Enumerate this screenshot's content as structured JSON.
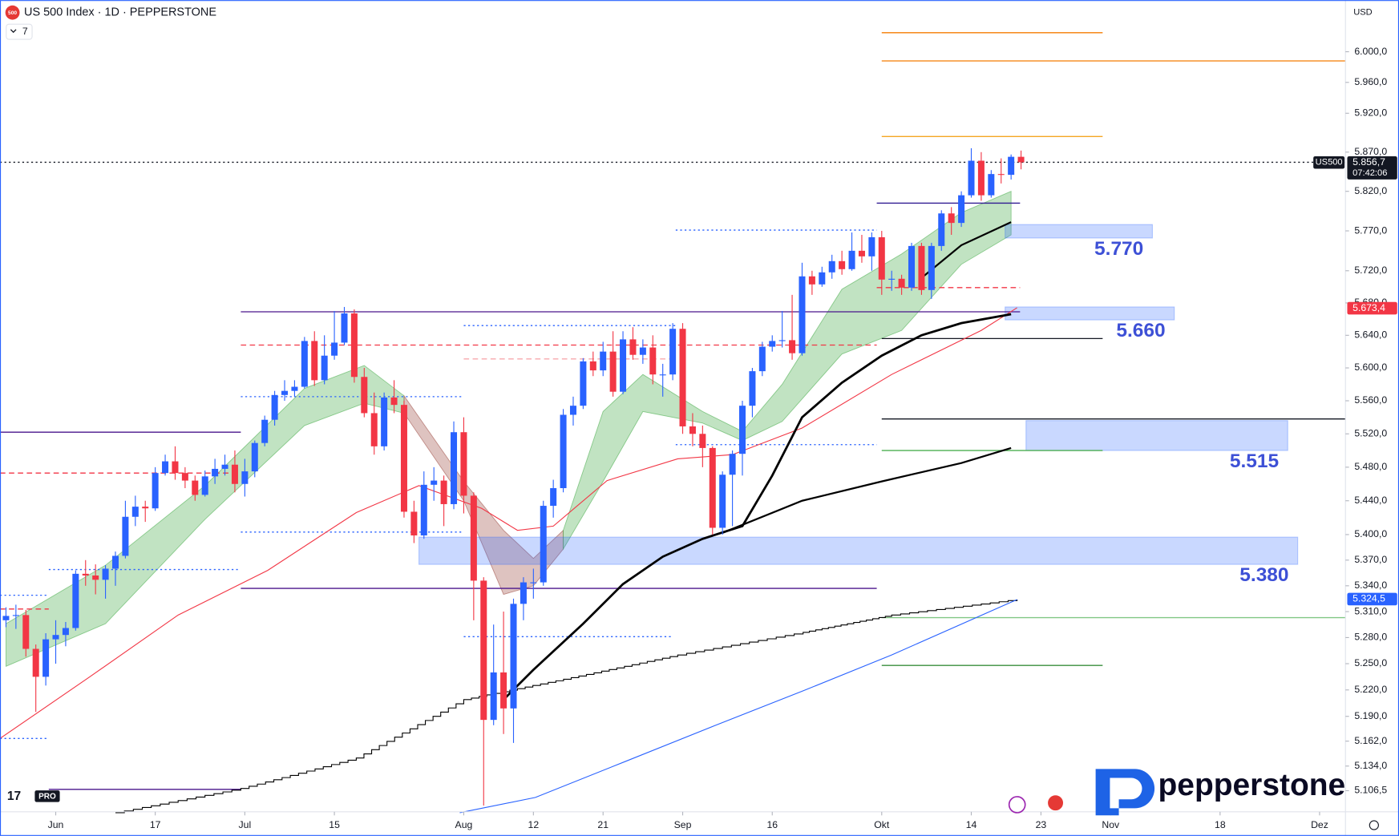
{
  "chart_data": {
    "type": "candlestick",
    "title": "US 500 Index · 1D · PEPPERSTONE",
    "symbol_icon": "500",
    "indicator_count": "7",
    "currency": "USD",
    "symbol": "US500",
    "countdown": "07:42:06",
    "logo": "pepperstone",
    "tv_badge": "PRO",
    "log_scale": true,
    "grid": false,
    "up_color": "#2962ff",
    "down_color": "#f23645",
    "xlim": [
      -0.6,
      134.6
    ],
    "ylim": [
      5083,
      6068
    ],
    "xticks": [
      {
        "value": 5,
        "label": "Jun"
      },
      {
        "value": 15,
        "label": "17"
      },
      {
        "value": 24,
        "label": "Jul"
      },
      {
        "value": 33,
        "label": "15"
      },
      {
        "value": 46,
        "label": "Aug"
      },
      {
        "value": 53,
        "label": "12"
      },
      {
        "value": 60,
        "label": "21"
      },
      {
        "value": 68,
        "label": "Sep"
      },
      {
        "value": 77,
        "label": "16"
      },
      {
        "value": 88,
        "label": "Okt"
      },
      {
        "value": 97,
        "label": "14"
      },
      {
        "value": 104,
        "label": "23"
      },
      {
        "value": 111,
        "label": "Nov"
      },
      {
        "value": 122,
        "label": "18"
      },
      {
        "value": 132,
        "label": "Dez"
      }
    ],
    "yticks": [
      {
        "value": 6000,
        "label": "6.000,0"
      },
      {
        "value": 5960,
        "label": "5.960,0"
      },
      {
        "value": 5920,
        "label": "5.920,0"
      },
      {
        "value": 5870,
        "label": "5.870,0"
      },
      {
        "value": 5820,
        "label": "5.820,0"
      },
      {
        "value": 5770,
        "label": "5.770,0"
      },
      {
        "value": 5720,
        "label": "5.720,0"
      },
      {
        "value": 5680,
        "label": "5.680,0"
      },
      {
        "value": 5640,
        "label": "5.640,0"
      },
      {
        "value": 5600,
        "label": "5.600,0"
      },
      {
        "value": 5560,
        "label": "5.560,0"
      },
      {
        "value": 5520,
        "label": "5.520,0"
      },
      {
        "value": 5480,
        "label": "5.480,0"
      },
      {
        "value": 5440,
        "label": "5.440,0"
      },
      {
        "value": 5400,
        "label": "5.400,0"
      },
      {
        "value": 5370,
        "label": "5.370,0"
      },
      {
        "value": 5340,
        "label": "5.340,0"
      },
      {
        "value": 5310,
        "label": "5.310,0"
      },
      {
        "value": 5280,
        "label": "5.280,0"
      },
      {
        "value": 5250,
        "label": "5.250,0"
      },
      {
        "value": 5220,
        "label": "5.220,0"
      },
      {
        "value": 5190,
        "label": "5.190,0"
      },
      {
        "value": 5162,
        "label": "5.162,0"
      },
      {
        "value": 5134,
        "label": "5.134,0"
      },
      {
        "value": 5106.5,
        "label": "5.106,5"
      }
    ],
    "series": [
      {
        "name": "US500",
        "open": [
          5300,
          5305,
          5306,
          5267,
          5235,
          5278,
          5283,
          5291,
          5354,
          5352,
          5347,
          5360,
          5375,
          5421,
          5433,
          5431,
          5473,
          5487,
          5473,
          5464,
          5447,
          5469,
          5478,
          5483,
          5460,
          5475,
          5509,
          5537,
          5567,
          5572,
          5577,
          5633,
          5585,
          5615,
          5631,
          5667,
          5589,
          5545,
          5505,
          5564,
          5555,
          5427,
          5399,
          5459,
          5464,
          5436,
          5522,
          5446,
          5346,
          5186,
          5240,
          5199,
          5319,
          5344,
          5344,
          5434,
          5455,
          5543,
          5554,
          5608,
          5597,
          5620,
          5571,
          5635,
          5616,
          5625,
          5592,
          5592,
          5648,
          5529,
          5520,
          5503,
          5408,
          5471,
          5496,
          5554,
          5596,
          5626,
          5633,
          5634,
          5618,
          5713,
          5703,
          5718,
          5732,
          5722,
          5745,
          5738,
          5762,
          5709,
          5710,
          5699,
          5751,
          5696,
          5751,
          5792,
          5780,
          5815,
          5859,
          5815,
          5842,
          5841,
          5864
        ],
        "high": [
          5315,
          5318,
          5312,
          5272,
          5285,
          5300,
          5298,
          5358,
          5370,
          5365,
          5364,
          5380,
          5440,
          5446,
          5440,
          5480,
          5495,
          5505,
          5480,
          5470,
          5476,
          5490,
          5495,
          5500,
          5490,
          5512,
          5542,
          5572,
          5585,
          5585,
          5638,
          5645,
          5640,
          5670,
          5675,
          5672,
          5600,
          5570,
          5570,
          5585,
          5560,
          5440,
          5475,
          5480,
          5470,
          5535,
          5540,
          5450,
          5350,
          5295,
          5310,
          5325,
          5350,
          5360,
          5440,
          5465,
          5550,
          5565,
          5612,
          5620,
          5632,
          5645,
          5645,
          5650,
          5635,
          5640,
          5605,
          5655,
          5655,
          5545,
          5530,
          5505,
          5475,
          5500,
          5560,
          5600,
          5632,
          5640,
          5670,
          5690,
          5730,
          5720,
          5725,
          5740,
          5745,
          5768,
          5765,
          5768,
          5770,
          5720,
          5715,
          5755,
          5755,
          5755,
          5796,
          5800,
          5820,
          5875,
          5870,
          5847,
          5862,
          5867,
          5872
        ],
        "low": [
          5292,
          5290,
          5258,
          5195,
          5225,
          5250,
          5270,
          5288,
          5340,
          5330,
          5325,
          5340,
          5372,
          5410,
          5415,
          5428,
          5470,
          5465,
          5455,
          5440,
          5445,
          5460,
          5470,
          5450,
          5445,
          5468,
          5505,
          5530,
          5560,
          5565,
          5575,
          5578,
          5580,
          5610,
          5628,
          5582,
          5540,
          5495,
          5500,
          5545,
          5420,
          5390,
          5395,
          5440,
          5410,
          5430,
          5425,
          5300,
          5090,
          5180,
          5170,
          5160,
          5300,
          5325,
          5340,
          5420,
          5450,
          5530,
          5550,
          5590,
          5590,
          5565,
          5568,
          5610,
          5605,
          5580,
          5565,
          5585,
          5520,
          5505,
          5480,
          5400,
          5400,
          5410,
          5470,
          5540,
          5590,
          5620,
          5625,
          5610,
          5615,
          5690,
          5700,
          5710,
          5715,
          5720,
          5730,
          5720,
          5690,
          5695,
          5690,
          5695,
          5690,
          5685,
          5745,
          5765,
          5775,
          5812,
          5808,
          5812,
          5830,
          5835,
          5848
        ],
        "close": [
          5305,
          5306,
          5267,
          5235,
          5278,
          5283,
          5291,
          5354,
          5352,
          5347,
          5360,
          5375,
          5421,
          5433,
          5431,
          5473,
          5487,
          5473,
          5464,
          5447,
          5469,
          5478,
          5483,
          5460,
          5475,
          5509,
          5537,
          5567,
          5572,
          5577,
          5633,
          5585,
          5615,
          5631,
          5667,
          5589,
          5545,
          5505,
          5564,
          5555,
          5427,
          5399,
          5459,
          5464,
          5436,
          5522,
          5446,
          5346,
          5186,
          5240,
          5199,
          5319,
          5344,
          5344,
          5434,
          5455,
          5543,
          5554,
          5608,
          5597,
          5620,
          5571,
          5635,
          5616,
          5625,
          5592,
          5592,
          5648,
          5529,
          5520,
          5503,
          5408,
          5471,
          5496,
          5554,
          5596,
          5626,
          5633,
          5634,
          5618,
          5713,
          5703,
          5718,
          5732,
          5722,
          5745,
          5738,
          5762,
          5709,
          5710,
          5699,
          5751,
          5696,
          5751,
          5792,
          5780,
          5815,
          5859,
          5815,
          5842,
          5841,
          5864,
          5857
        ]
      }
    ],
    "bands": [
      {
        "color": "#4caf50",
        "x": [
          0,
          10,
          20,
          30,
          36,
          40
        ],
        "upper": [
          5296,
          5364,
          5458,
          5575,
          5603,
          5566
        ],
        "lower": [
          5247,
          5296,
          5418,
          5530,
          5557,
          5545
        ]
      },
      {
        "color": "#a0524a",
        "x": [
          40,
          46,
          50,
          53,
          56
        ],
        "upper": [
          5566,
          5463,
          5405,
          5372,
          5405
        ],
        "lower": [
          5545,
          5440,
          5330,
          5340,
          5383
        ]
      },
      {
        "color": "#4caf50",
        "x": [
          56,
          60,
          64,
          70,
          74,
          78,
          84,
          90,
          96,
          101
        ],
        "upper": [
          5405,
          5547,
          5592,
          5547,
          5523,
          5580,
          5697,
          5741,
          5793,
          5820
        ],
        "lower": [
          5383,
          5463,
          5547,
          5533,
          5512,
          5535,
          5617,
          5646,
          5728,
          5765
        ]
      }
    ],
    "lines": [
      {
        "color": "#000000",
        "width": 1,
        "step": true,
        "x": [
          11,
          23.6,
          35.2,
          46,
          56.8,
          67.5,
          80.1,
          89,
          101.6
        ],
        "values": [
          5082,
          5109,
          5143,
          5209,
          5234,
          5260,
          5286,
          5306,
          5324
        ]
      },
      {
        "color": "#2962ff",
        "width": 1,
        "x": [
          45.6,
          53.2,
          62.2,
          71.1,
          80.1,
          89,
          101.6
        ],
        "values": [
          5082,
          5099,
          5139,
          5179,
          5219,
          5260,
          5324
        ]
      },
      {
        "color": "#f23645",
        "width": 1,
        "x": [
          -0.6,
          8.3,
          17.3,
          26.3,
          35.2,
          41.5,
          47.8,
          51.4,
          55,
          60.4,
          67.5,
          73,
          80,
          89,
          98,
          101.6
        ],
        "values": [
          5165,
          5234,
          5306,
          5358,
          5426,
          5458,
          5431,
          5405,
          5410,
          5464,
          5490,
          5495,
          5527,
          5592,
          5646,
          5674
        ]
      },
      {
        "color": "#000000",
        "width": 2.5,
        "x": [
          50,
          53,
          58,
          62,
          66,
          70,
          74,
          77,
          80,
          84,
          88,
          92,
          96,
          101
        ],
        "values": [
          5209,
          5243,
          5296,
          5342,
          5374,
          5395,
          5410,
          5470,
          5540,
          5582,
          5615,
          5640,
          5655,
          5666
        ]
      },
      {
        "color": "#000000",
        "width": 2,
        "x": [
          72,
          80,
          88,
          96,
          101
        ],
        "values": [
          5402,
          5440,
          5463,
          5485,
          5503
        ]
      },
      {
        "color": "#000000",
        "width": 2,
        "x": [
          92,
          96,
          101
        ],
        "values": [
          5711,
          5752,
          5781
        ]
      }
    ],
    "levels": [
      {
        "value": 6025,
        "from": 88,
        "to": 110.2,
        "color": "#f57c00",
        "style": "solid"
      },
      {
        "value": 5988,
        "from": 88,
        "to": 134.6,
        "color": "#f57c00",
        "style": "solid"
      },
      {
        "value": 5890,
        "from": 88,
        "to": 110.2,
        "color": "#f5a623",
        "style": "solid"
      },
      {
        "value": 5857,
        "from": -0.6,
        "to": 134.6,
        "color": "#131722",
        "style": "dotted"
      },
      {
        "value": 5805,
        "from": 87.5,
        "to": 101.9,
        "color": "#311b92",
        "style": "solid"
      },
      {
        "value": 5771,
        "from": 67.3,
        "to": 87.5,
        "color": "#2962ff",
        "style": "dotted"
      },
      {
        "value": 5699,
        "from": 87.5,
        "to": 101.9,
        "color": "#f23645",
        "style": "dashed"
      },
      {
        "value": 5669,
        "from": 23.6,
        "to": 101.9,
        "color": "#4a148c",
        "style": "solid"
      },
      {
        "value": 5652,
        "from": 46,
        "to": 67.5,
        "color": "#2962ff",
        "style": "dotted"
      },
      {
        "value": 5636,
        "from": 88,
        "to": 110.2,
        "color": "#131722",
        "style": "solid"
      },
      {
        "value": 5628,
        "from": 23.6,
        "to": 87.5,
        "color": "#f23645",
        "style": "dashed"
      },
      {
        "value": 5611,
        "from": 46,
        "to": 67.5,
        "color": "#f7a8ad",
        "style": "dashed"
      },
      {
        "value": 5565,
        "from": 23.6,
        "to": 46,
        "color": "#2962ff",
        "style": "dotted"
      },
      {
        "value": 5538,
        "from": 88,
        "to": 134.6,
        "color": "#131722",
        "style": "solid"
      },
      {
        "value": 5522,
        "from": -0.6,
        "to": 23.6,
        "color": "#4a148c",
        "style": "solid"
      },
      {
        "value": 5507,
        "from": 67.3,
        "to": 87.5,
        "color": "#2962ff",
        "style": "dotted"
      },
      {
        "value": 5500,
        "from": 88,
        "to": 110.2,
        "color": "#4caf50",
        "style": "solid"
      },
      {
        "value": 5473,
        "from": -0.6,
        "to": 23.6,
        "color": "#f23645",
        "style": "dashed"
      },
      {
        "value": 5403,
        "from": 23.6,
        "to": 46,
        "color": "#2962ff",
        "style": "dotted"
      },
      {
        "value": 5359,
        "from": 4.3,
        "to": 23.3,
        "color": "#2962ff",
        "style": "dotted"
      },
      {
        "value": 5337,
        "from": 23.6,
        "to": 87.5,
        "color": "#4a148c",
        "style": "solid"
      },
      {
        "value": 5329,
        "from": -0.6,
        "to": 4.3,
        "color": "#2962ff",
        "style": "dotted"
      },
      {
        "value": 5313,
        "from": -0.6,
        "to": 4.3,
        "color": "#f23645",
        "style": "dashed"
      },
      {
        "value": 5303,
        "from": 88,
        "to": 134.6,
        "color": "#81c784",
        "style": "solid"
      },
      {
        "value": 5281,
        "from": 46,
        "to": 66.8,
        "color": "#2962ff",
        "style": "dotted"
      },
      {
        "value": 5248,
        "from": 88,
        "to": 110.2,
        "color": "#388e3c",
        "style": "solid"
      },
      {
        "value": 5165,
        "from": -0.6,
        "to": 4.3,
        "color": "#2962ff",
        "style": "dotted"
      },
      {
        "value": 5108,
        "from": 4.3,
        "to": 23.6,
        "color": "#4a148c",
        "style": "solid"
      }
    ],
    "zones": [
      {
        "label": "5.770",
        "ymin": 5761,
        "ymax": 5778,
        "x_start": 100.4,
        "x_end": 115.2
      },
      {
        "label": "5.660",
        "ymin": 5659,
        "ymax": 5675,
        "x_start": 100.4,
        "x_end": 117.4
      },
      {
        "label": "5.515",
        "ymin": 5500,
        "ymax": 5536,
        "x_start": 102.5,
        "x_end": 128.8
      },
      {
        "label": "5.380",
        "ymin": 5365,
        "ymax": 5397,
        "x_start": 41.5,
        "x_end": 129.8
      }
    ],
    "price_labels": [
      {
        "value": 5856.7,
        "label": "5.856,7",
        "color": "#131722"
      },
      {
        "value": 5673.4,
        "label": "5.673,4",
        "color": "#f23645"
      },
      {
        "value": 5324.5,
        "label": "5.324,5",
        "color": "#2962ff"
      }
    ]
  }
}
